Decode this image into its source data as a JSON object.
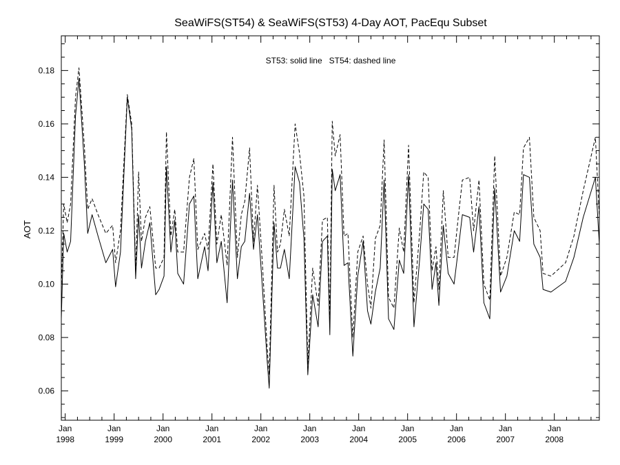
{
  "chart_data": {
    "type": "line",
    "title": "SeaWiFS(ST54) & SeaWiFS(ST53) 4-Day AOT, PacEqu Subset",
    "annotation": "ST53: solid line   ST54: dashed line",
    "xlabel": "",
    "ylabel": "AOT",
    "xlim": [
      1997.92,
      2008.92
    ],
    "ylim": [
      0.049,
      0.193
    ],
    "y_ticks": [
      {
        "value": 0.06,
        "label": "0.06"
      },
      {
        "value": 0.08,
        "label": "0.08"
      },
      {
        "value": 0.1,
        "label": "0.10"
      },
      {
        "value": 0.12,
        "label": "0.12"
      },
      {
        "value": 0.14,
        "label": "0.14"
      },
      {
        "value": 0.16,
        "label": "0.16"
      },
      {
        "value": 0.18,
        "label": "0.18"
      }
    ],
    "x_ticks": [
      {
        "value": 1998,
        "month": "Jan",
        "year": "1998"
      },
      {
        "value": 1999,
        "month": "Jan",
        "year": "1999"
      },
      {
        "value": 2000,
        "month": "Jan",
        "year": "2000"
      },
      {
        "value": 2001,
        "month": "Jan",
        "year": "2001"
      },
      {
        "value": 2002,
        "month": "Jan",
        "year": "2002"
      },
      {
        "value": 2003,
        "month": "Jan",
        "year": "2003"
      },
      {
        "value": 2004,
        "month": "Jan",
        "year": "2004"
      },
      {
        "value": 2005,
        "month": "Jan",
        "year": "2005"
      },
      {
        "value": 2006,
        "month": "Jan",
        "year": "2006"
      },
      {
        "value": 2007,
        "month": "Jan",
        "year": "2007"
      },
      {
        "value": 2008,
        "month": "Jan",
        "year": "2008"
      }
    ],
    "series": [
      {
        "name": "ST53",
        "style": "solid",
        "color": "#000000",
        "x": [
          1997.92,
          1997.97,
          1998.04,
          1998.11,
          1998.21,
          1998.28,
          1998.39,
          1998.46,
          1998.55,
          1998.67,
          1998.83,
          1998.97,
          1999.03,
          1999.13,
          1999.27,
          1999.36,
          1999.44,
          1999.5,
          1999.56,
          1999.64,
          1999.73,
          1999.85,
          1999.92,
          2000.02,
          2000.07,
          2000.16,
          2000.24,
          2000.3,
          2000.42,
          2000.54,
          2000.63,
          2000.71,
          2000.85,
          2000.92,
          2001.02,
          2001.1,
          2001.19,
          2001.31,
          2001.42,
          2001.52,
          2001.6,
          2001.67,
          2001.77,
          2001.85,
          2001.93,
          2002.03,
          2002.13,
          2002.17,
          2002.27,
          2002.34,
          2002.4,
          2002.48,
          2002.58,
          2002.7,
          2002.79,
          2002.88,
          2002.96,
          2003.06,
          2003.17,
          2003.26,
          2003.36,
          2003.41,
          2003.46,
          2003.52,
          2003.62,
          2003.7,
          2003.78,
          2003.88,
          2003.98,
          2004.09,
          2004.18,
          2004.25,
          2004.34,
          2004.44,
          2004.52,
          2004.61,
          2004.72,
          2004.83,
          2004.92,
          2005.02,
          2005.13,
          2005.25,
          2005.33,
          2005.42,
          2005.5,
          2005.58,
          2005.64,
          2005.73,
          2005.83,
          2005.95,
          2006.03,
          2006.12,
          2006.27,
          2006.35,
          2006.46,
          2006.56,
          2006.68,
          2006.78,
          2006.9,
          2007.03,
          2007.18,
          2007.29,
          2007.37,
          2007.49,
          2007.58,
          2007.71,
          2007.77,
          2007.93,
          2008.23,
          2008.4,
          2008.59,
          2008.84,
          2008.92
        ],
        "values": [
          0.087,
          0.119,
          0.112,
          0.116,
          0.163,
          0.177,
          0.145,
          0.119,
          0.126,
          0.118,
          0.108,
          0.113,
          0.099,
          0.112,
          0.17,
          0.158,
          0.102,
          0.126,
          0.106,
          0.116,
          0.123,
          0.096,
          0.098,
          0.103,
          0.144,
          0.112,
          0.124,
          0.104,
          0.1,
          0.13,
          0.133,
          0.102,
          0.114,
          0.105,
          0.138,
          0.108,
          0.116,
          0.093,
          0.139,
          0.102,
          0.114,
          0.116,
          0.134,
          0.113,
          0.126,
          0.099,
          0.071,
          0.061,
          0.123,
          0.106,
          0.106,
          0.113,
          0.102,
          0.144,
          0.138,
          0.117,
          0.066,
          0.096,
          0.084,
          0.116,
          0.118,
          0.081,
          0.143,
          0.135,
          0.141,
          0.107,
          0.108,
          0.073,
          0.103,
          0.116,
          0.09,
          0.085,
          0.097,
          0.106,
          0.139,
          0.087,
          0.083,
          0.109,
          0.104,
          0.141,
          0.084,
          0.11,
          0.13,
          0.128,
          0.098,
          0.108,
          0.092,
          0.122,
          0.104,
          0.1,
          0.112,
          0.126,
          0.125,
          0.112,
          0.129,
          0.093,
          0.087,
          0.136,
          0.097,
          0.103,
          0.12,
          0.116,
          0.141,
          0.14,
          0.115,
          0.11,
          0.098,
          0.097,
          0.101,
          0.11,
          0.125,
          0.14,
          0.115
        ]
      },
      {
        "name": "ST54",
        "style": "dashed",
        "color": "#000000",
        "x": [
          1997.92,
          1997.97,
          1998.04,
          1998.11,
          1998.21,
          1998.28,
          1998.39,
          1998.46,
          1998.55,
          1998.67,
          1998.83,
          1998.97,
          1999.03,
          1999.13,
          1999.27,
          1999.36,
          1999.44,
          1999.5,
          1999.56,
          1999.64,
          1999.73,
          1999.85,
          1999.92,
          2000.02,
          2000.07,
          2000.16,
          2000.24,
          2000.3,
          2000.42,
          2000.54,
          2000.63,
          2000.71,
          2000.85,
          2000.92,
          2001.02,
          2001.1,
          2001.19,
          2001.31,
          2001.42,
          2001.52,
          2001.6,
          2001.67,
          2001.77,
          2001.85,
          2001.93,
          2002.03,
          2002.13,
          2002.17,
          2002.27,
          2002.34,
          2002.4,
          2002.48,
          2002.58,
          2002.7,
          2002.79,
          2002.88,
          2002.96,
          2003.06,
          2003.17,
          2003.26,
          2003.36,
          2003.41,
          2003.46,
          2003.52,
          2003.62,
          2003.7,
          2003.78,
          2003.88,
          2003.98,
          2004.09,
          2004.18,
          2004.25,
          2004.34,
          2004.44,
          2004.52,
          2004.61,
          2004.72,
          2004.83,
          2004.92,
          2005.02,
          2005.13,
          2005.25,
          2005.33,
          2005.42,
          2005.5,
          2005.58,
          2005.64,
          2005.73,
          2005.83,
          2005.95,
          2006.03,
          2006.12,
          2006.27,
          2006.35,
          2006.46,
          2006.56,
          2006.68,
          2006.78,
          2006.9,
          2007.03,
          2007.18,
          2007.29,
          2007.37,
          2007.49,
          2007.58,
          2007.71,
          2007.77,
          2007.93,
          2008.23,
          2008.4,
          2008.59,
          2008.84,
          2008.92
        ],
        "values": [
          0.098,
          0.13,
          0.123,
          0.13,
          0.17,
          0.181,
          0.152,
          0.128,
          0.132,
          0.126,
          0.119,
          0.122,
          0.108,
          0.12,
          0.171,
          0.16,
          0.105,
          0.142,
          0.116,
          0.125,
          0.129,
          0.106,
          0.106,
          0.11,
          0.157,
          0.118,
          0.128,
          0.112,
          0.112,
          0.14,
          0.147,
          0.113,
          0.119,
          0.113,
          0.145,
          0.115,
          0.126,
          0.107,
          0.155,
          0.11,
          0.126,
          0.131,
          0.151,
          0.116,
          0.137,
          0.108,
          0.076,
          0.066,
          0.137,
          0.112,
          0.115,
          0.128,
          0.118,
          0.16,
          0.149,
          0.133,
          0.07,
          0.106,
          0.092,
          0.124,
          0.125,
          0.087,
          0.161,
          0.148,
          0.156,
          0.118,
          0.119,
          0.08,
          0.112,
          0.118,
          0.1,
          0.091,
          0.117,
          0.122,
          0.154,
          0.095,
          0.091,
          0.121,
          0.112,
          0.152,
          0.093,
          0.12,
          0.142,
          0.14,
          0.105,
          0.114,
          0.098,
          0.135,
          0.11,
          0.11,
          0.124,
          0.139,
          0.14,
          0.12,
          0.139,
          0.1,
          0.094,
          0.148,
          0.103,
          0.11,
          0.127,
          0.126,
          0.151,
          0.155,
          0.125,
          0.12,
          0.104,
          0.103,
          0.108,
          0.118,
          0.135,
          0.155,
          0.125
        ]
      }
    ]
  }
}
